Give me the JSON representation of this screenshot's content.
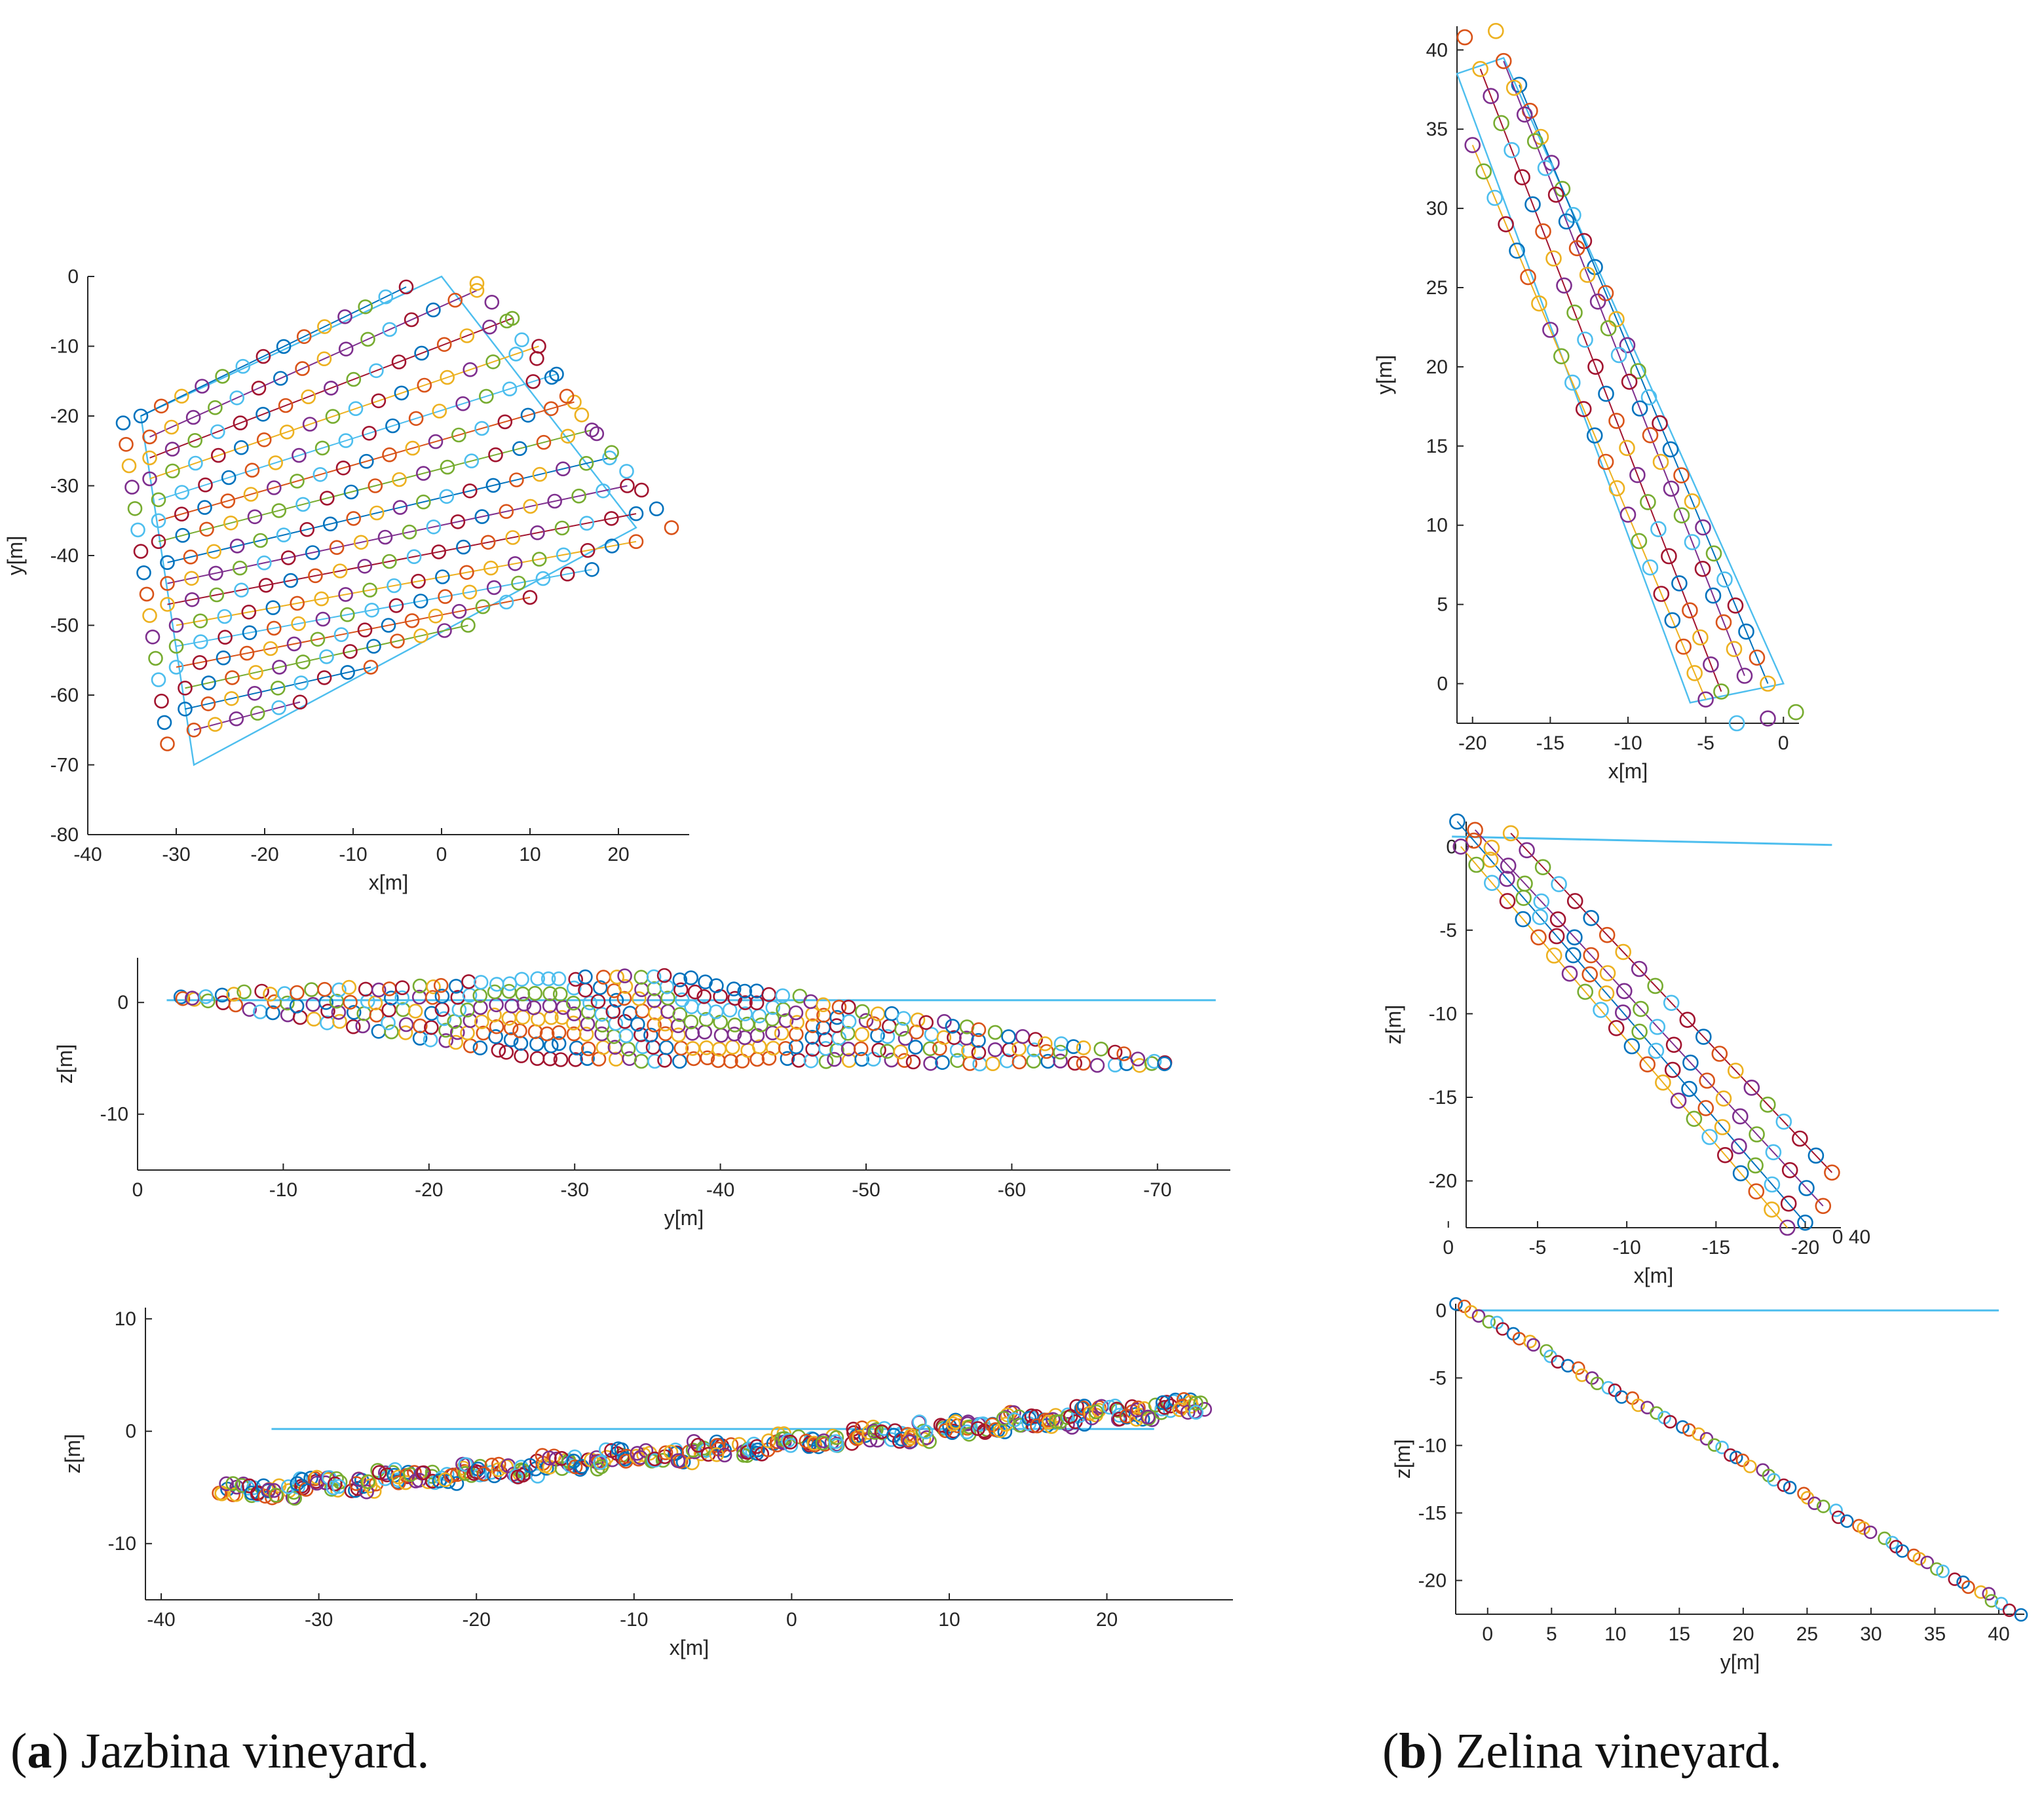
{
  "captions": {
    "a": {
      "label": "a",
      "text": " Jazbina vineyard."
    },
    "b": {
      "label": "b",
      "text": " Zelina vineyard."
    }
  },
  "colors": [
    "#0072BD",
    "#D95319",
    "#EDB120",
    "#7E2F8E",
    "#77AC30",
    "#4DBEEE",
    "#A2142F"
  ],
  "chart_data": [
    {
      "id": "jazbina-xy",
      "type": "scatter",
      "xlabel": "x[m]",
      "ylabel": "y[m]",
      "xlim": [
        -40,
        28
      ],
      "ylim": [
        -80,
        0
      ],
      "xticks": [
        -40,
        -30,
        -20,
        -10,
        0,
        10,
        20
      ],
      "yticks": [
        0,
        -10,
        -20,
        -30,
        -40,
        -50,
        -60,
        -70,
        -80
      ],
      "outline": [
        [
          0,
          0
        ],
        [
          22,
          -36
        ],
        [
          -28,
          -70
        ],
        [
          -34,
          -20
        ]
      ],
      "rows": [
        {
          "start": [
            -34,
            -20
          ],
          "end": [
            -4,
            -1.5
          ],
          "n": 14
        },
        {
          "start": [
            -33,
            -23
          ],
          "end": [
            4,
            -2
          ],
          "n": 16
        },
        {
          "start": [
            -33,
            -26
          ],
          "end": [
            8,
            -6
          ],
          "n": 17
        },
        {
          "start": [
            -33,
            -29
          ],
          "end": [
            11,
            -10
          ],
          "n": 18
        },
        {
          "start": [
            -32,
            -32
          ],
          "end": [
            13,
            -14
          ],
          "n": 18
        },
        {
          "start": [
            -32,
            -35
          ],
          "end": [
            15,
            -18
          ],
          "n": 19
        },
        {
          "start": [
            -32,
            -38
          ],
          "end": [
            17,
            -22
          ],
          "n": 19
        },
        {
          "start": [
            -31,
            -41
          ],
          "end": [
            19,
            -26
          ],
          "n": 20
        },
        {
          "start": [
            -31,
            -44
          ],
          "end": [
            21,
            -30
          ],
          "n": 20
        },
        {
          "start": [
            -31,
            -47
          ],
          "end": [
            22,
            -34
          ],
          "n": 20
        },
        {
          "start": [
            -30,
            -50
          ],
          "end": [
            22,
            -38
          ],
          "n": 20
        },
        {
          "start": [
            -30,
            -53
          ],
          "end": [
            17,
            -42
          ],
          "n": 18
        },
        {
          "start": [
            -30,
            -56
          ],
          "end": [
            10,
            -46
          ],
          "n": 16
        },
        {
          "start": [
            -29,
            -59
          ],
          "end": [
            3,
            -50
          ],
          "n": 13
        },
        {
          "start": [
            -29,
            -62
          ],
          "end": [
            -8,
            -56
          ],
          "n": 9
        },
        {
          "start": [
            -28,
            -65
          ],
          "end": [
            -16,
            -61
          ],
          "n": 6
        }
      ],
      "extra_columns": [
        {
          "start": [
            -36,
            -21
          ],
          "end": [
            -31,
            -67
          ],
          "n": 16
        },
        {
          "start": [
            4,
            -1
          ],
          "end": [
            26,
            -36
          ],
          "n": 14
        }
      ]
    },
    {
      "id": "jazbina-yz",
      "type": "scatter",
      "xlabel": "y[m]",
      "ylabel": "z[m]",
      "xlim": [
        0,
        -75
      ],
      "ylim": [
        -15,
        4
      ],
      "xticks": [
        0,
        -10,
        -20,
        -30,
        -40,
        -50,
        -60,
        -70
      ],
      "yticks": [
        0,
        -10
      ],
      "ref_line": [
        [
          -2,
          0.2
        ],
        [
          -74,
          0.2
        ]
      ],
      "band": {
        "top": [
          [
            -3,
            0.5
          ],
          [
            -36,
            2.5
          ],
          [
            -71,
            -5.5
          ]
        ],
        "bottom": [
          [
            -3,
            0.5
          ],
          [
            -28,
            -5
          ],
          [
            -71,
            -5.5
          ]
        ]
      }
    },
    {
      "id": "jazbina-xz",
      "type": "scatter",
      "xlabel": "x[m]",
      "ylabel": "z[m]",
      "xlim": [
        -41,
        28
      ],
      "ylim": [
        -15,
        11
      ],
      "xticks": [
        -40,
        -30,
        -20,
        -10,
        0,
        10,
        20
      ],
      "yticks": [
        10,
        0,
        -10
      ],
      "ref_line": [
        [
          -33,
          0.2
        ],
        [
          23,
          0.2
        ]
      ],
      "trend": {
        "start": [
          -36,
          -5.2
        ],
        "end": [
          26,
          2.7
        ]
      }
    },
    {
      "id": "zelina-xy",
      "type": "scatter",
      "xlabel": "x[m]",
      "ylabel": "y[m]",
      "xlim": [
        -21,
        1
      ],
      "ylim": [
        -2.5,
        41.5
      ],
      "xticks": [
        -20,
        -15,
        -10,
        -5,
        0
      ],
      "yticks": [
        40,
        35,
        30,
        25,
        20,
        15,
        10,
        5,
        0
      ],
      "outline": [
        [
          -18,
          39.5
        ],
        [
          0,
          0
        ],
        [
          -6,
          -1.2
        ],
        [
          -21,
          38.5
        ]
      ],
      "rows": [
        {
          "start": [
            -17,
            37.8
          ],
          "end": [
            -1,
            0
          ],
          "n": 24
        },
        {
          "start": [
            -18,
            39.3
          ],
          "end": [
            -2.5,
            0.5
          ],
          "n": 24
        },
        {
          "start": [
            -19.5,
            38.8
          ],
          "end": [
            -4,
            -0.5
          ],
          "n": 24
        },
        {
          "start": [
            -20,
            34
          ],
          "end": [
            -5,
            -1
          ],
          "n": 22
        }
      ],
      "extras": [
        [
          -20.5,
          40.8
        ],
        [
          -18.5,
          41.2
        ],
        [
          -1.0,
          -2.2
        ],
        [
          0.8,
          -1.8
        ],
        [
          -3.0,
          -2.5
        ]
      ]
    },
    {
      "id": "zelina-yz",
      "type": "scatter",
      "xlabel": "x[m]",
      "ylabel": "z[m]",
      "xlim": [
        -1,
        -22
      ],
      "ylim": [
        -22.8,
        1.5
      ],
      "xticks": [
        0,
        -5,
        -10,
        -15,
        -20
      ],
      "yticks": [
        0,
        -5,
        -10,
        -15,
        -20
      ],
      "extra_tick_text": "0 40",
      "ref_line": [
        [
          -0.2,
          0.6
        ],
        [
          -21.5,
          0.1
        ]
      ],
      "rows": [
        {
          "start": [
            -0.5,
            1.5
          ],
          "end": [
            -20,
            -22.5
          ],
          "n": 22
        },
        {
          "start": [
            -1.5,
            1.0
          ],
          "end": [
            -21,
            -21.5
          ],
          "n": 22
        },
        {
          "start": [
            -3.5,
            0.8
          ],
          "end": [
            -21.5,
            -19.5
          ],
          "n": 21
        },
        {
          "start": [
            -0.7,
            0
          ],
          "end": [
            -19,
            -22.8
          ],
          "n": 22
        }
      ]
    },
    {
      "id": "zelina-yyz",
      "type": "scatter",
      "xlabel": "y[m]",
      "ylabel": "z[m]",
      "xlim": [
        -2.5,
        42
      ],
      "ylim": [
        -22.5,
        0.5
      ],
      "xticks": [
        0,
        5,
        10,
        15,
        20,
        25,
        30,
        35,
        40
      ],
      "yticks": [
        0,
        -5,
        -10,
        -15,
        -20
      ],
      "ref_line": [
        [
          -1,
          0
        ],
        [
          40,
          0
        ]
      ],
      "trend": {
        "start": [
          -2.5,
          0.6
        ],
        "end": [
          41.5,
          -22.4
        ]
      }
    }
  ]
}
